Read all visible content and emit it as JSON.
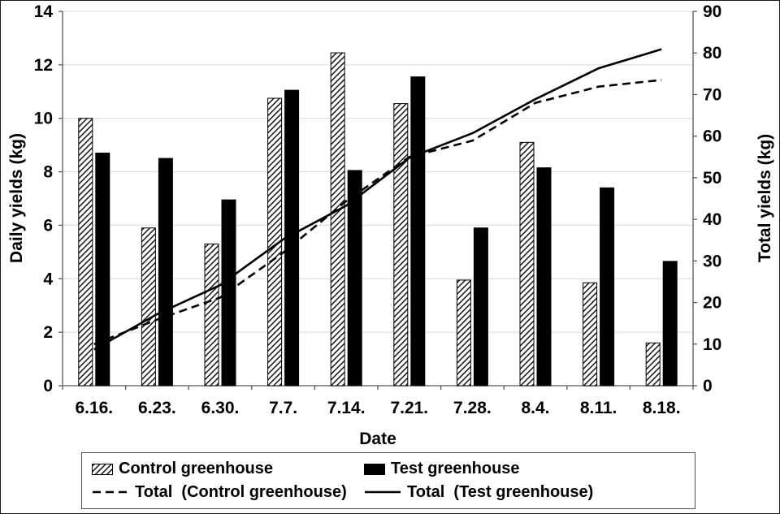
{
  "chart_data": {
    "type": "bar",
    "xlabel": "Date",
    "categories": [
      "6.16.",
      "6.23.",
      "6.30.",
      "7.7.",
      "7.14.",
      "7.21.",
      "7.28.",
      "8.4.",
      "8.11.",
      "8.18."
    ],
    "left_axis": {
      "label": "Daily yields (kg)",
      "min": 0,
      "max": 14,
      "step": 2
    },
    "right_axis": {
      "label": "Total yields (kg)",
      "min": 0,
      "max": 90,
      "step": 10
    },
    "grid": "horizontal",
    "legend_position": "bottom",
    "series": [
      {
        "name": "Control greenhouse",
        "type": "bar",
        "axis": "left",
        "style": "hatched",
        "color": "#000000",
        "values": [
          10.0,
          5.9,
          5.3,
          10.75,
          12.45,
          10.55,
          3.95,
          9.1,
          3.85,
          1.6
        ]
      },
      {
        "name": "Test greenhouse",
        "type": "bar",
        "axis": "left",
        "style": "solid",
        "color": "#000000",
        "values": [
          8.7,
          8.5,
          6.95,
          11.05,
          8.05,
          11.55,
          5.9,
          8.15,
          7.4,
          4.65
        ]
      },
      {
        "name": "Total  (Control greenhouse)",
        "type": "line",
        "axis": "right",
        "style": "dashed",
        "color": "#000000",
        "values": [
          10.0,
          15.9,
          21.2,
          32.0,
          44.4,
          55.0,
          58.9,
          68.0,
          71.9,
          73.5
        ]
      },
      {
        "name": "Total  (Test greenhouse)",
        "type": "line",
        "axis": "right",
        "style": "solid",
        "color": "#000000",
        "values": [
          8.7,
          17.2,
          24.2,
          35.2,
          43.3,
          54.8,
          60.7,
          68.9,
          76.3,
          80.9
        ]
      }
    ],
    "legend": {
      "items": [
        {
          "label": "Control greenhouse",
          "swatch": "hatched-bar"
        },
        {
          "label": "Test greenhouse",
          "swatch": "solid-bar"
        },
        {
          "label": "Total  (Control greenhouse)",
          "swatch": "dashed-line"
        },
        {
          "label": "Total  (Test greenhouse)",
          "swatch": "solid-line"
        }
      ]
    },
    "colors": {
      "series": "#000000",
      "gridline": "#d9d9d9",
      "axis_line": "#595959",
      "background": "#ffffff"
    }
  }
}
